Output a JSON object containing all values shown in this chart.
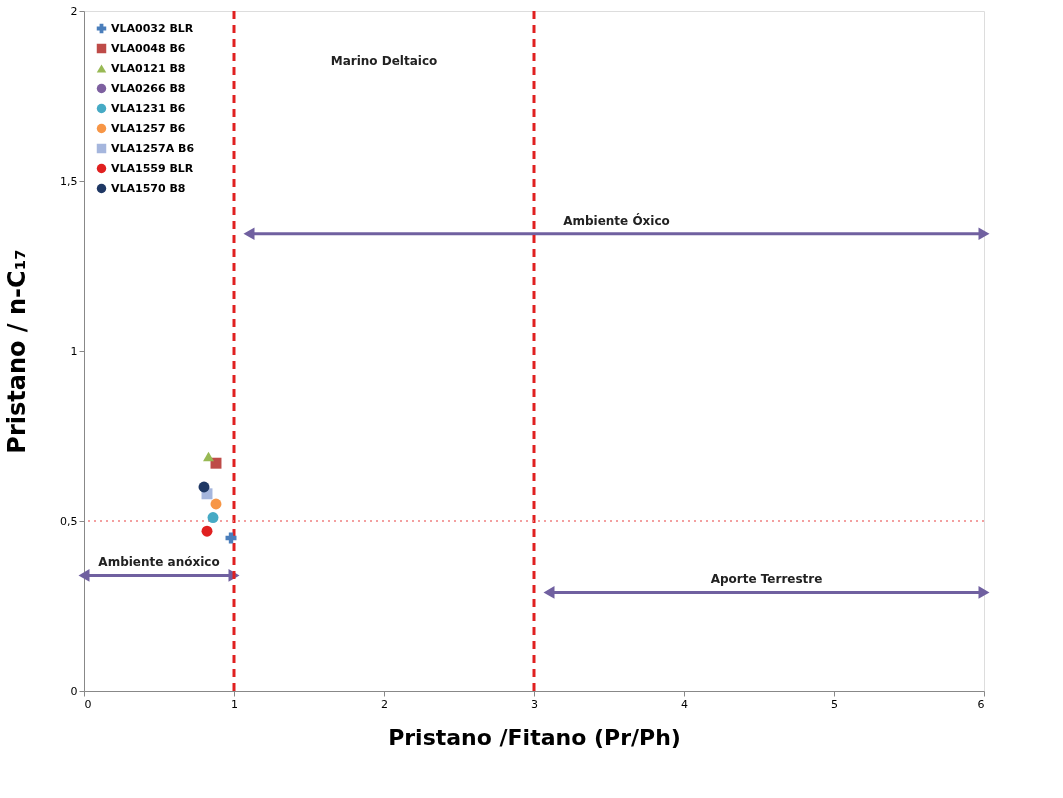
{
  "chart_data": {
    "type": "scatter",
    "xlabel": "Pristano /Fitano (Pr/Ph)",
    "ylabel": "Pristano / n-C₁₇",
    "xlim": [
      0,
      6
    ],
    "xticks": [
      0,
      1,
      2,
      3,
      4,
      5,
      6
    ],
    "ylim": [
      0,
      2
    ],
    "yticks": [
      0,
      {
        "value": 0.5,
        "label": "0,5"
      },
      1,
      {
        "value": 1.5,
        "label": "1,5"
      },
      2
    ],
    "grid": false,
    "legend": "top left",
    "series": [
      {
        "name": "VLA0032 BLR",
        "color": "#4a7ebb",
        "marker": "cross",
        "x": [
          0.98
        ],
        "values": [
          0.45
        ]
      },
      {
        "name": "VLA0048 B6",
        "color": "#be4b48",
        "marker": "square",
        "x": [
          0.88
        ],
        "values": [
          0.67
        ]
      },
      {
        "name": "VLA0121 B8",
        "color": "#98b954",
        "marker": "triangle",
        "x": [
          0.83
        ],
        "values": [
          0.69
        ]
      },
      {
        "name": "VLA0266 B8",
        "color": "#7d60a0",
        "marker": "circle",
        "x": [
          null
        ],
        "values": [
          null
        ]
      },
      {
        "name": "VLA1231 B6",
        "color": "#46aac5",
        "marker": "circle",
        "x": [
          0.86
        ],
        "values": [
          0.51
        ]
      },
      {
        "name": "VLA1257 B6",
        "color": "#f79646",
        "marker": "circle",
        "x": [
          0.88
        ],
        "values": [
          0.55
        ]
      },
      {
        "name": "VLA1257A B6",
        "color": "#a5b6dd",
        "marker": "square",
        "x": [
          0.82
        ],
        "values": [
          0.58
        ]
      },
      {
        "name": "VLA1559 BLR",
        "color": "#e02020",
        "marker": "circle",
        "x": [
          0.82
        ],
        "values": [
          0.47
        ]
      },
      {
        "name": "VLA1570 B8",
        "color": "#1f3864",
        "marker": "circle",
        "x": [
          0.8
        ],
        "values": [
          0.6
        ]
      },
      {
        "type": "line",
        "name": "Ambiente  Óxico",
        "color": "#7060a0",
        "marker": "triangle",
        "line_style": "solid",
        "x": [
          1.1,
          6
        ],
        "values": [
          1.345,
          1.345
        ]
      },
      {
        "type": "line",
        "name": "Ambiente anóxico",
        "color": "#7060a0",
        "marker": "triangle",
        "line_style": "solid",
        "x": [
          0,
          1
        ],
        "values": [
          0.34,
          0.34
        ]
      },
      {
        "type": "line",
        "name": "Aporte Terrestre",
        "color": "#7060a0",
        "marker": "triangle",
        "line_style": "solid",
        "x": [
          3.1,
          6
        ],
        "values": [
          0.29,
          0.29
        ]
      }
    ],
    "annotations": [
      "Marino Deltaico"
    ],
    "ref_lines": [
      {
        "axis": "x",
        "value": 1,
        "color": "#e02020",
        "line_style": "dashed"
      },
      {
        "axis": "x",
        "value": 3,
        "color": "#e02020",
        "line_style": "dashed"
      },
      {
        "axis": "y",
        "value": 0.5,
        "color": "#f08080",
        "line_style": "dotted"
      }
    ]
  }
}
